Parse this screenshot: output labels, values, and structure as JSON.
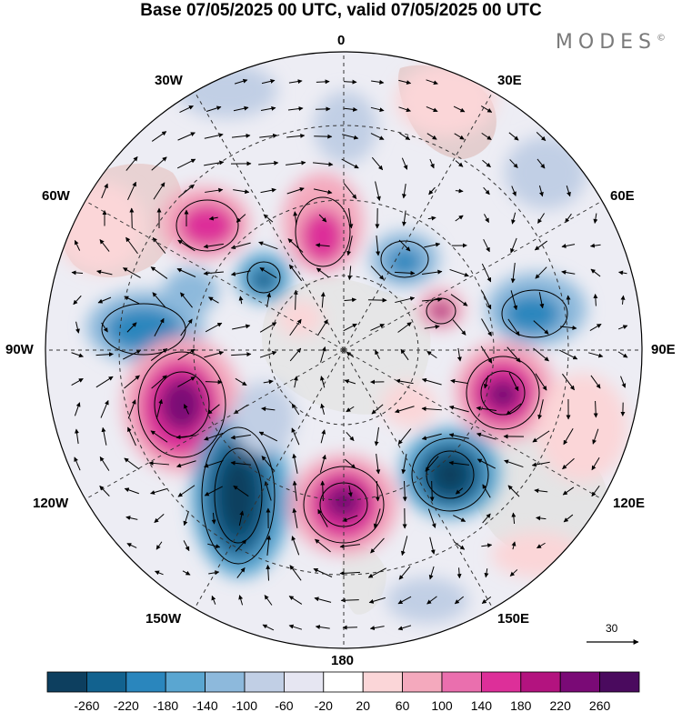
{
  "title": "Base 07/05/2025 00 UTC, valid 07/05/2025 00 UTC",
  "brand": "MODES",
  "brand_mark": "©",
  "longitude_labels": {
    "lon_0": "0",
    "lon_30e": "30E",
    "lon_60e": "60E",
    "lon_90e": "90E",
    "lon_120e": "120E",
    "lon_150e": "150E",
    "lon_180": "180",
    "lon_150w": "150W",
    "lon_120w": "120W",
    "lon_90w": "90W",
    "lon_60w": "60W",
    "lon_30w": "30W"
  },
  "reference_vector": {
    "value": "30"
  },
  "colorbar": {
    "ticks": [
      "-260",
      "-220",
      "-180",
      "-140",
      "-100",
      "-60",
      "-20",
      "20",
      "60",
      "100",
      "140",
      "180",
      "220",
      "260"
    ],
    "colors": [
      "#0d3f5f",
      "#12628f",
      "#2a86bd",
      "#5aa6d1",
      "#8db9dc",
      "#c1cfe5",
      "#e6e6f2",
      "#ffffff",
      "#fbd6d8",
      "#f4a9bd",
      "#ea6fae",
      "#dd2f99",
      "#b3137f",
      "#7a0a76",
      "#4a0a5e"
    ]
  },
  "land_color": "#d9d9d9"
}
